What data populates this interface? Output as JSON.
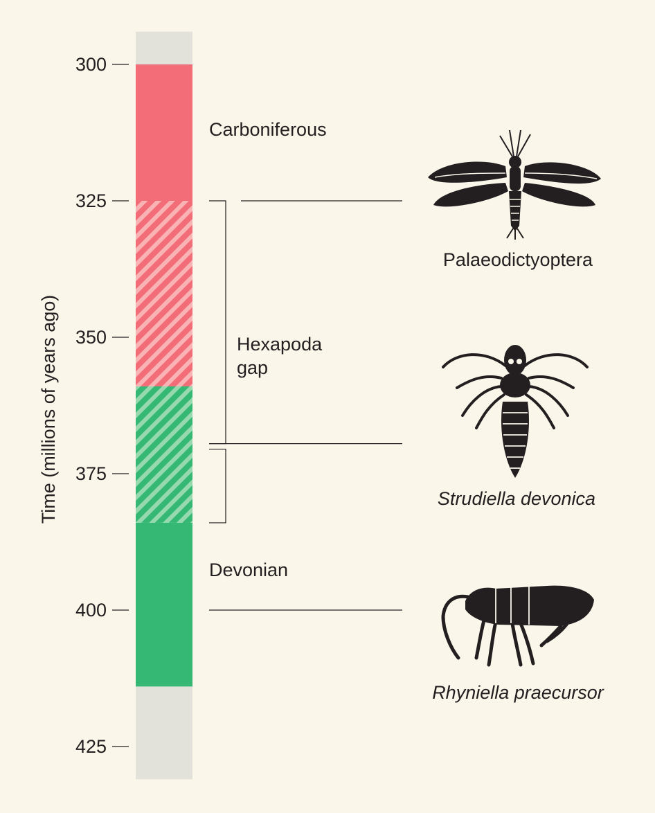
{
  "axis": {
    "title": "Time (millions of years ago)",
    "ticks": [
      300,
      325,
      350,
      375,
      400,
      425
    ],
    "range": [
      294,
      431
    ]
  },
  "periods": [
    {
      "name": "Carboniferous",
      "start": 300,
      "end": 325,
      "color": "#f26d78",
      "hatched": false
    },
    {
      "name": "",
      "start": 325,
      "end": 359,
      "color": "#f26d78",
      "hatched": true
    },
    {
      "name": "",
      "start": 359,
      "end": 384,
      "color": "#34b874",
      "hatched": true
    },
    {
      "name": "Devonian",
      "start": 384,
      "end": 414,
      "color": "#34b874",
      "hatched": false
    }
  ],
  "bar_background": {
    "start": 294,
    "end": 431,
    "color": "#e2e1da"
  },
  "gap_label": {
    "line1": "Hexapoda",
    "line2": "gap"
  },
  "gap_brackets": [
    {
      "start": 325,
      "end": 369.5
    },
    {
      "start": 370.5,
      "end": 384
    }
  ],
  "fossils": [
    {
      "name": "Palaeodictyoptera",
      "time": 325,
      "italic": false,
      "icon": "palaeodictyoptera-silhouette-icon"
    },
    {
      "name": "Strudiella devonica",
      "time": 369.5,
      "italic": true,
      "icon": "strudiella-silhouette-icon"
    },
    {
      "name": "Rhyniella praecursor",
      "time": 400,
      "italic": true,
      "icon": "rhyniella-silhouette-icon"
    }
  ],
  "colors": {
    "carboniferous": "#f26d78",
    "devonian": "#34b874",
    "ink": "#231f20",
    "background": "#faf6ea"
  }
}
